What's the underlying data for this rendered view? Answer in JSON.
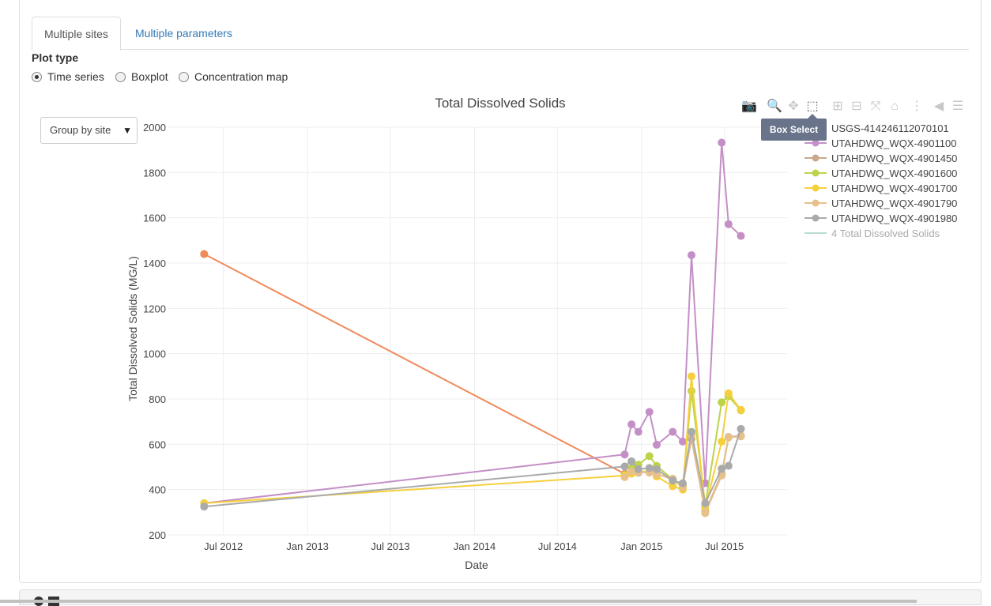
{
  "tabs": {
    "multiple_sites": "Multiple sites",
    "multiple_parameters": "Multiple parameters"
  },
  "plot_type": {
    "label": "Plot type",
    "options": [
      "Time series",
      "Boxplot",
      "Concentration map"
    ],
    "selected": "Time series"
  },
  "group_select": {
    "value": "Group by site",
    "caret": "▼"
  },
  "tooltip": "Box Select",
  "modebar": {
    "icons": [
      {
        "name": "camera-icon",
        "glyph": "📷",
        "active": false
      },
      {
        "name": "zoom-icon",
        "glyph": "🔍",
        "active": false
      },
      {
        "name": "pan-icon",
        "glyph": "✥",
        "active": false
      },
      {
        "name": "box-select-icon",
        "glyph": "⬚",
        "active": true
      },
      {
        "name": "zoom-in-icon",
        "glyph": "⊞",
        "active": false
      },
      {
        "name": "zoom-out-icon",
        "glyph": "⊟",
        "active": false
      },
      {
        "name": "autoscale-icon",
        "glyph": "⤧",
        "active": false
      },
      {
        "name": "reset-axes-icon",
        "glyph": "⌂",
        "active": false
      },
      {
        "name": "spike-lines-icon",
        "glyph": "⋮",
        "active": false
      },
      {
        "name": "hover-closest-icon",
        "glyph": "◀",
        "active": false
      },
      {
        "name": "hover-compare-icon",
        "glyph": "☰",
        "active": false
      }
    ]
  },
  "chart_data": {
    "type": "line",
    "title": "Total Dissolved Solids",
    "xlabel": "Date",
    "ylabel": "Total Dissolved Solids (MG/L)",
    "xlim": [
      "2012-03-01",
      "2015-11-15"
    ],
    "ylim": [
      200,
      2000
    ],
    "x_ticks": [
      {
        "date": "2012-07-01",
        "label": "Jul 2012"
      },
      {
        "date": "2013-01-01",
        "label": "Jan 2013"
      },
      {
        "date": "2013-07-01",
        "label": "Jul 2013"
      },
      {
        "date": "2014-01-01",
        "label": "Jan 2014"
      },
      {
        "date": "2014-07-01",
        "label": "Jul 2014"
      },
      {
        "date": "2015-01-01",
        "label": "Jan 2015"
      },
      {
        "date": "2015-07-01",
        "label": "Jul 2015"
      }
    ],
    "y_ticks": [
      200,
      400,
      600,
      800,
      1000,
      1200,
      1400,
      1600,
      1800,
      2000
    ],
    "grid": true,
    "legend_position": "top-right",
    "series": [
      {
        "name": "USGS-414246112070101",
        "color": "#ef8a5a",
        "points": [
          [
            "2012-05-20",
            1440
          ],
          [
            "2014-11-25",
            470
          ]
        ]
      },
      {
        "name": "UTAHDWQ_WQX-4901100",
        "color": "#c48fc6",
        "points": [
          [
            "2012-05-20",
            340
          ],
          [
            "2014-11-25",
            555
          ],
          [
            "2014-12-10",
            688
          ],
          [
            "2014-12-25",
            655
          ],
          [
            "2015-01-18",
            743
          ],
          [
            "2015-02-03",
            598
          ],
          [
            "2015-03-10",
            655
          ],
          [
            "2015-04-01",
            612
          ],
          [
            "2015-04-20",
            1435
          ],
          [
            "2015-05-20",
            428
          ],
          [
            "2015-06-25",
            1932
          ],
          [
            "2015-07-10",
            1572
          ],
          [
            "2015-08-06",
            1520
          ]
        ]
      },
      {
        "name": "UTAHDWQ_WQX-4901450",
        "color": "#c9a98a",
        "points": [
          [
            "2014-11-25",
            458
          ],
          [
            "2014-12-10",
            478
          ],
          [
            "2014-12-25",
            475
          ],
          [
            "2015-01-18",
            478
          ],
          [
            "2015-02-03",
            470
          ],
          [
            "2015-03-10",
            445
          ],
          [
            "2015-04-01",
            420
          ],
          [
            "2015-04-20",
            625
          ],
          [
            "2015-05-20",
            302
          ],
          [
            "2015-06-25",
            470
          ],
          [
            "2015-07-10",
            632
          ],
          [
            "2015-08-06",
            638
          ]
        ]
      },
      {
        "name": "UTAHDWQ_WQX-4901600",
        "color": "#bcd34a",
        "points": [
          [
            "2014-11-25",
            465
          ],
          [
            "2014-12-10",
            495
          ],
          [
            "2014-12-25",
            510
          ],
          [
            "2015-01-18",
            548
          ],
          [
            "2015-02-03",
            505
          ],
          [
            "2015-03-10",
            445
          ],
          [
            "2015-04-01",
            410
          ],
          [
            "2015-04-20",
            835
          ],
          [
            "2015-05-20",
            330
          ],
          [
            "2015-06-25",
            785
          ],
          [
            "2015-07-10",
            812
          ],
          [
            "2015-08-06",
            750
          ]
        ]
      },
      {
        "name": "UTAHDWQ_WQX-4901700",
        "color": "#f5d03c",
        "points": [
          [
            "2012-05-20",
            340
          ],
          [
            "2014-11-25",
            462
          ],
          [
            "2014-12-10",
            470
          ],
          [
            "2014-12-25",
            480
          ],
          [
            "2015-01-18",
            480
          ],
          [
            "2015-02-03",
            458
          ],
          [
            "2015-03-10",
            415
          ],
          [
            "2015-04-01",
            400
          ],
          [
            "2015-04-20",
            900
          ],
          [
            "2015-05-20",
            318
          ],
          [
            "2015-06-25",
            612
          ],
          [
            "2015-07-10",
            825
          ],
          [
            "2015-08-06",
            752
          ]
        ]
      },
      {
        "name": "UTAHDWQ_WQX-4901790",
        "color": "#e8c08a",
        "points": [
          [
            "2014-11-25",
            455
          ],
          [
            "2014-12-10",
            480
          ],
          [
            "2014-12-25",
            478
          ],
          [
            "2015-01-18",
            475
          ],
          [
            "2015-02-03",
            468
          ],
          [
            "2015-03-10",
            448
          ],
          [
            "2015-04-01",
            410
          ],
          [
            "2015-04-20",
            640
          ],
          [
            "2015-05-20",
            296
          ],
          [
            "2015-06-25",
            462
          ],
          [
            "2015-07-10",
            630
          ],
          [
            "2015-08-06",
            635
          ]
        ]
      },
      {
        "name": "UTAHDWQ_WQX-4901980",
        "color": "#aaaaaa",
        "points": [
          [
            "2012-05-20",
            325
          ],
          [
            "2014-11-25",
            502
          ],
          [
            "2014-12-10",
            525
          ],
          [
            "2014-12-25",
            490
          ],
          [
            "2015-01-18",
            495
          ],
          [
            "2015-02-03",
            490
          ],
          [
            "2015-03-10",
            440
          ],
          [
            "2015-04-01",
            428
          ],
          [
            "2015-04-20",
            655
          ],
          [
            "2015-05-20",
            340
          ],
          [
            "2015-06-25",
            492
          ],
          [
            "2015-07-10",
            505
          ],
          [
            "2015-08-06",
            668
          ]
        ]
      }
    ],
    "legend_extra": {
      "name": "4 Total Dissolved Solids",
      "color": "#b7dcd5"
    }
  }
}
